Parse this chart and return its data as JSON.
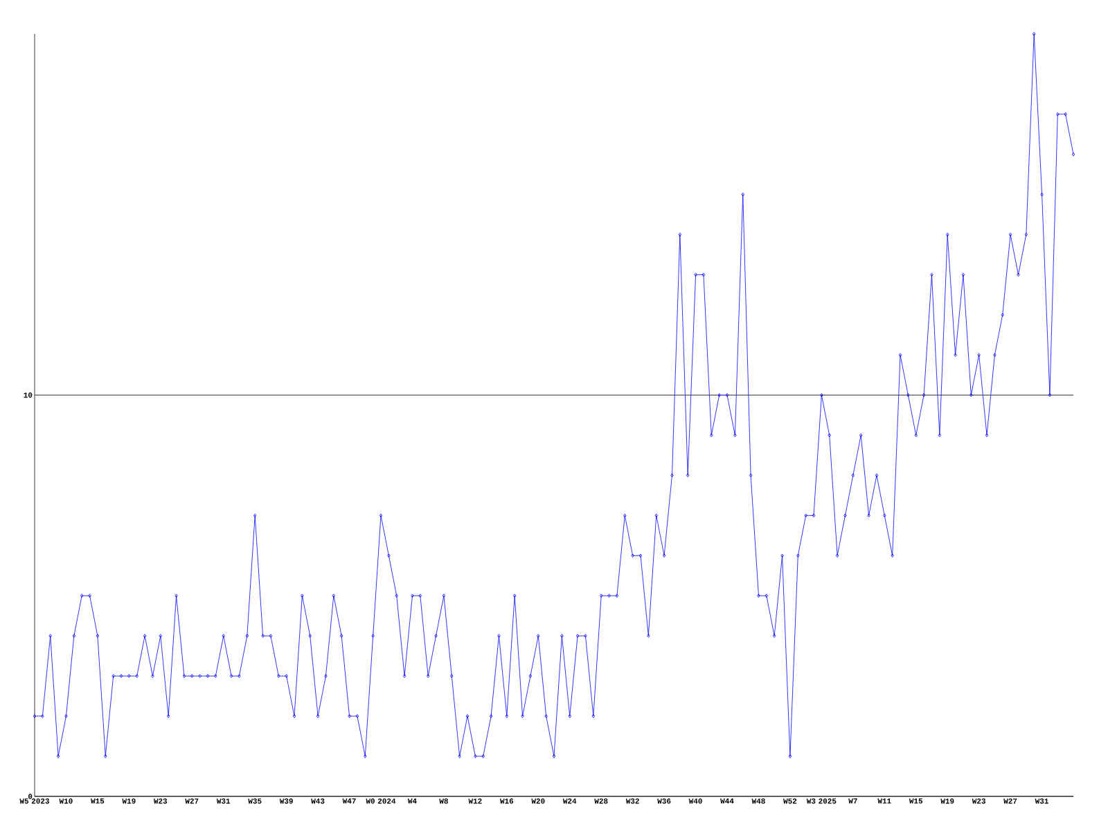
{
  "chart_data": {
    "type": "line",
    "categories": [
      "W5 2023",
      null,
      null,
      null,
      "W10",
      null,
      null,
      null,
      "W15",
      null,
      null,
      null,
      "W19",
      null,
      null,
      null,
      "W23",
      null,
      null,
      null,
      "W27",
      null,
      null,
      null,
      "W31",
      null,
      null,
      null,
      "W35",
      null,
      null,
      null,
      "W39",
      null,
      null,
      null,
      "W43",
      null,
      null,
      null,
      "W47",
      null,
      null,
      null,
      "W0 2024",
      null,
      null,
      null,
      "W4",
      null,
      null,
      null,
      "W8",
      null,
      null,
      null,
      "W12",
      null,
      null,
      null,
      "W16",
      null,
      null,
      null,
      "W20",
      null,
      null,
      null,
      "W24",
      null,
      null,
      null,
      "W28",
      null,
      null,
      null,
      "W32",
      null,
      null,
      null,
      "W36",
      null,
      null,
      null,
      "W40",
      null,
      null,
      null,
      "W44",
      null,
      null,
      null,
      "W48",
      null,
      null,
      null,
      "W52",
      null,
      null,
      null,
      "W3 2025",
      null,
      null,
      null,
      "W7",
      null,
      null,
      null,
      "W11",
      null,
      null,
      null,
      "W15",
      null,
      null,
      null,
      "W19",
      null,
      null,
      null,
      "W23",
      null,
      null,
      null,
      "W27",
      null,
      null,
      null,
      "W31",
      null,
      null,
      null,
      null
    ],
    "values": [
      2,
      2,
      4,
      1,
      2,
      4,
      5,
      5,
      4,
      1,
      3,
      3,
      3,
      3,
      4,
      3,
      4,
      2,
      5,
      3,
      3,
      3,
      3,
      3,
      4,
      3,
      3,
      4,
      7,
      4,
      4,
      3,
      3,
      2,
      5,
      4,
      2,
      3,
      5,
      4,
      2,
      2,
      1,
      4,
      7,
      6,
      5,
      3,
      5,
      5,
      3,
      4,
      5,
      3,
      1,
      2,
      1,
      1,
      2,
      4,
      2,
      5,
      2,
      3,
      4,
      2,
      1,
      4,
      2,
      4,
      4,
      2,
      5,
      5,
      5,
      7,
      6,
      6,
      4,
      7,
      6,
      8,
      14,
      8,
      13,
      13,
      9,
      10,
      10,
      9,
      15,
      8,
      5,
      5,
      4,
      6,
      1,
      6,
      7,
      7,
      10,
      9,
      6,
      7,
      8,
      9,
      7,
      8,
      7,
      6,
      11,
      10,
      9,
      10,
      13,
      9,
      14,
      11,
      13,
      10,
      11,
      9,
      11,
      12,
      14,
      13,
      14,
      19,
      15,
      10,
      17,
      17,
      16
    ],
    "color": "#0000ff",
    "marker": "diamond",
    "line_style": "solid",
    "grid": "y",
    "ylim": [
      0,
      19
    ],
    "yticks": [
      0,
      10
    ]
  }
}
